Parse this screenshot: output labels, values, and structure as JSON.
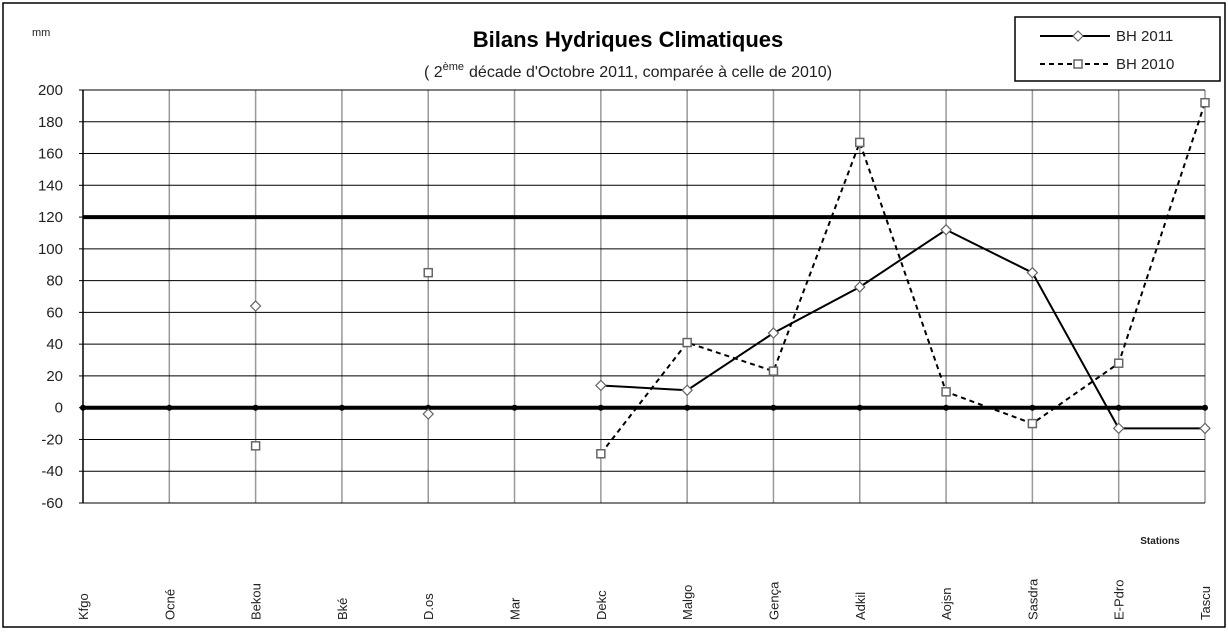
{
  "chart_data": {
    "type": "line",
    "title": "Bilans Hydriques Climatiques",
    "subtitle": [
      "( 2",
      "ème",
      "décade d'Octobre  2011, comparée à celle de 2010)"
    ],
    "y_label": "mm",
    "x_label": "Stations",
    "categories": [
      "Kfgo",
      "Ocné",
      "Bekou",
      "Bké",
      "D.os",
      "Mar",
      "Dekc",
      "Malgo",
      "Gença",
      "Adkil",
      "Aojsn",
      "Sasdra",
      "E-Pdro",
      "Tascu"
    ],
    "series": [
      {
        "name": "BH 2011",
        "color": "#000000",
        "dash": "none",
        "marker": "diamond",
        "values": [
          null,
          null,
          64,
          null,
          -4,
          null,
          14,
          11,
          47,
          76,
          112,
          85,
          -13,
          -13
        ]
      },
      {
        "name": "BH 2010",
        "color": "#000000",
        "dash": "5,4",
        "marker": "square",
        "values": [
          null,
          null,
          -24,
          null,
          85,
          null,
          -29,
          41,
          23,
          167,
          10,
          -10,
          28,
          192
        ]
      }
    ],
    "ylim": [
      -60,
      200
    ],
    "yticks": [
      -60,
      -40,
      -20,
      0,
      20,
      40,
      60,
      80,
      100,
      120,
      140,
      160,
      180,
      200
    ],
    "reference_lines": [
      0,
      120
    ],
    "grid": true,
    "legend": "top-right"
  }
}
